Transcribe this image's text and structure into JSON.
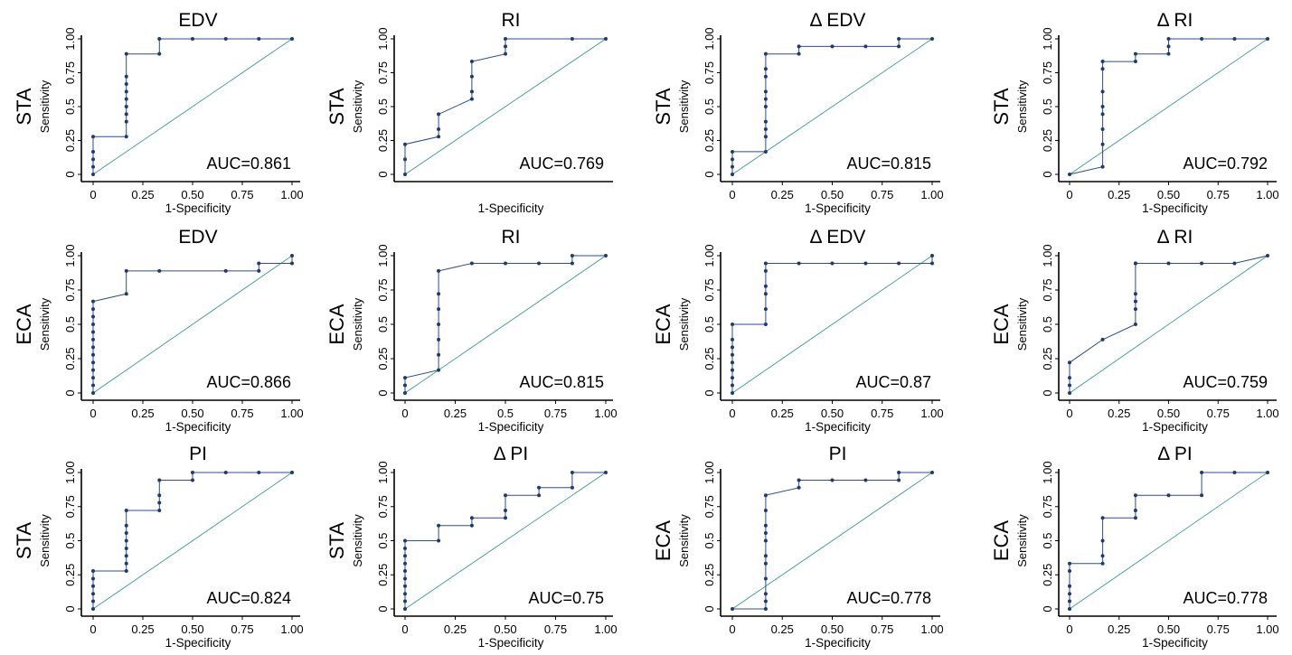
{
  "figure": {
    "colors": {
      "curve": "#2b4e8c",
      "point": "#1f3a6e",
      "diagonal": "#3a9a8e",
      "axis": "#000000"
    },
    "xlabel": "1-Specificity",
    "ylabel": "Sensitivity",
    "xticks_a": [
      "0",
      "0.25",
      "0.50",
      "0.75",
      "1.00"
    ],
    "xticks_b": [
      "0",
      "0.25",
      "0.5",
      "0.75",
      "1.00"
    ],
    "yticks": [
      "0",
      "0.25",
      "0.5",
      "0.75",
      "1.00"
    ]
  },
  "chart_data": [
    {
      "type": "line",
      "title": "EDV",
      "row_label": "STA",
      "xlabel": "1-Specificity",
      "ylabel": "Sensitivity",
      "auc": "AUC=0.861",
      "xticks": "xticks_a",
      "x": [
        0,
        0,
        0,
        0,
        0,
        0.167,
        0.167,
        0.167,
        0.167,
        0.167,
        0.167,
        0.167,
        0.167,
        0.167,
        0.333,
        0.333,
        0.5,
        0.667,
        0.833,
        1.0
      ],
      "y": [
        0,
        0.056,
        0.111,
        0.167,
        0.278,
        0.278,
        0.389,
        0.444,
        0.5,
        0.556,
        0.611,
        0.667,
        0.722,
        0.889,
        0.889,
        1.0,
        1.0,
        1.0,
        1.0,
        1.0
      ]
    },
    {
      "type": "line",
      "title": "RI",
      "row_label": "STA",
      "xlabel": "1-Specificity",
      "ylabel": "Sensitivity",
      "auc": "AUC=0.769",
      "xticks": "none",
      "x": [
        0,
        0,
        0,
        0.167,
        0.167,
        0.167,
        0.333,
        0.333,
        0.333,
        0.333,
        0.5,
        0.5,
        0.5,
        0.833,
        1.0
      ],
      "y": [
        0,
        0.111,
        0.222,
        0.278,
        0.333,
        0.444,
        0.556,
        0.611,
        0.722,
        0.833,
        0.889,
        0.944,
        1.0,
        1.0,
        1.0
      ]
    },
    {
      "type": "line",
      "title": "Δ EDV",
      "row_label": "STA",
      "xlabel": "1-Specificity",
      "ylabel": "Sensitivity",
      "auc": "AUC=0.815",
      "xticks": "xticks_a",
      "x": [
        0,
        0,
        0,
        0,
        0.167,
        0.167,
        0.167,
        0.167,
        0.167,
        0.167,
        0.167,
        0.167,
        0.167,
        0.167,
        0.333,
        0.333,
        0.5,
        0.667,
        0.833,
        0.833,
        1.0
      ],
      "y": [
        0,
        0.056,
        0.111,
        0.167,
        0.167,
        0.278,
        0.333,
        0.389,
        0.5,
        0.556,
        0.611,
        0.722,
        0.778,
        0.889,
        0.889,
        0.944,
        0.944,
        0.944,
        0.944,
        1.0,
        1.0
      ]
    },
    {
      "type": "line",
      "title": "Δ RI",
      "row_label": "STA",
      "xlabel": "1-Specificity",
      "ylabel": "Sensitivity",
      "auc": "AUC=0.792",
      "xticks": "xticks_a",
      "x": [
        0,
        0.167,
        0.167,
        0.167,
        0.167,
        0.167,
        0.167,
        0.167,
        0.167,
        0.333,
        0.333,
        0.5,
        0.5,
        0.5,
        0.667,
        0.833,
        1.0
      ],
      "y": [
        0,
        0.056,
        0.222,
        0.333,
        0.444,
        0.5,
        0.611,
        0.778,
        0.833,
        0.833,
        0.889,
        0.889,
        0.944,
        1.0,
        1.0,
        1.0,
        1.0
      ]
    },
    {
      "type": "line",
      "title": "EDV",
      "row_label": "ECA",
      "xlabel": "1-Specificity",
      "ylabel": "Sensitivity",
      "auc": "AUC=0.866",
      "xticks": "xticks_a",
      "x": [
        0,
        0,
        0,
        0,
        0,
        0,
        0,
        0,
        0,
        0,
        0,
        0,
        0,
        0.167,
        0.167,
        0.333,
        0.667,
        0.833,
        0.833,
        1.0,
        1.0
      ],
      "y": [
        0,
        0.056,
        0.111,
        0.167,
        0.222,
        0.278,
        0.333,
        0.389,
        0.444,
        0.5,
        0.556,
        0.611,
        0.667,
        0.722,
        0.889,
        0.889,
        0.889,
        0.889,
        0.944,
        0.944,
        1.0
      ]
    },
    {
      "type": "line",
      "title": "RI",
      "row_label": "ECA",
      "xlabel": "1-Specificity",
      "ylabel": "Sensitivity",
      "auc": "AUC=0.815",
      "xticks": "xticks_b",
      "x": [
        0,
        0,
        0,
        0.167,
        0.167,
        0.167,
        0.167,
        0.167,
        0.167,
        0.167,
        0.333,
        0.5,
        0.667,
        0.833,
        0.833,
        1.0
      ],
      "y": [
        0,
        0.056,
        0.111,
        0.167,
        0.278,
        0.389,
        0.5,
        0.611,
        0.722,
        0.889,
        0.944,
        0.944,
        0.944,
        0.944,
        1.0,
        1.0
      ]
    },
    {
      "type": "line",
      "title": "Δ EDV",
      "row_label": "ECA",
      "xlabel": "1-Specificity",
      "ylabel": "Sensitivity",
      "auc": "AUC=0.87",
      "xticks": "xticks_a",
      "x": [
        0,
        0,
        0,
        0,
        0,
        0,
        0,
        0,
        0,
        0.167,
        0.167,
        0.167,
        0.167,
        0.167,
        0.167,
        0.333,
        0.5,
        0.667,
        0.833,
        1.0,
        1.0
      ],
      "y": [
        0,
        0.056,
        0.111,
        0.167,
        0.222,
        0.278,
        0.333,
        0.389,
        0.5,
        0.5,
        0.611,
        0.722,
        0.778,
        0.889,
        0.944,
        0.944,
        0.944,
        0.944,
        0.944,
        0.944,
        1.0
      ]
    },
    {
      "type": "line",
      "title": "Δ RI",
      "row_label": "ECA",
      "xlabel": "1-Specificity",
      "ylabel": "Sensitivity",
      "auc": "AUC=0.759",
      "xticks": "xticks_a",
      "x": [
        0,
        0,
        0,
        0,
        0.167,
        0.333,
        0.333,
        0.333,
        0.333,
        0.333,
        0.333,
        0.5,
        0.667,
        0.833,
        1.0
      ],
      "y": [
        0,
        0.056,
        0.111,
        0.222,
        0.389,
        0.5,
        0.611,
        0.667,
        0.722,
        0.944,
        0.944,
        0.944,
        0.944,
        0.944,
        1.0
      ]
    },
    {
      "type": "line",
      "title": "PI",
      "row_label": "STA",
      "xlabel": "1-Specificity",
      "ylabel": "Sensitivity",
      "auc": "AUC=0.824",
      "xticks": "xticks_a",
      "x": [
        0,
        0,
        0,
        0,
        0,
        0,
        0.167,
        0.167,
        0.167,
        0.167,
        0.167,
        0.167,
        0.167,
        0.167,
        0.333,
        0.333,
        0.333,
        0.333,
        0.5,
        0.5,
        0.667,
        0.833,
        1.0
      ],
      "y": [
        0,
        0.056,
        0.111,
        0.167,
        0.222,
        0.278,
        0.278,
        0.333,
        0.389,
        0.444,
        0.5,
        0.556,
        0.611,
        0.722,
        0.722,
        0.778,
        0.833,
        0.944,
        0.944,
        1.0,
        1.0,
        1.0,
        1.0
      ]
    },
    {
      "type": "line",
      "title": "Δ PI",
      "row_label": "STA",
      "xlabel": "1-Specificity",
      "ylabel": "Sensitivity",
      "auc": "AUC=0.75",
      "xticks": "xticks_a",
      "x": [
        0,
        0,
        0,
        0,
        0,
        0,
        0,
        0,
        0,
        0,
        0.167,
        0.167,
        0.333,
        0.333,
        0.5,
        0.5,
        0.5,
        0.667,
        0.667,
        0.833,
        0.833,
        1.0
      ],
      "y": [
        0,
        0.056,
        0.111,
        0.167,
        0.222,
        0.278,
        0.333,
        0.389,
        0.444,
        0.5,
        0.5,
        0.611,
        0.611,
        0.667,
        0.667,
        0.722,
        0.833,
        0.833,
        0.889,
        0.889,
        1.0,
        1.0
      ]
    },
    {
      "type": "line",
      "title": "PI",
      "row_label": "ECA",
      "xlabel": "1-Specificity",
      "ylabel": "Sensitivity",
      "auc": "AUC=0.778",
      "xticks": "xticks_a",
      "x": [
        0,
        0.167,
        0.167,
        0.167,
        0.167,
        0.167,
        0.167,
        0.167,
        0.167,
        0.167,
        0.167,
        0.167,
        0.333,
        0.333,
        0.5,
        0.667,
        0.833,
        0.833,
        1.0
      ],
      "y": [
        0,
        0,
        0.056,
        0.111,
        0.222,
        0.333,
        0.389,
        0.5,
        0.556,
        0.611,
        0.722,
        0.833,
        0.889,
        0.944,
        0.944,
        0.944,
        0.944,
        1.0,
        1.0
      ]
    },
    {
      "type": "line",
      "title": "Δ PI",
      "row_label": "ECA",
      "xlabel": "1-Specificity",
      "ylabel": "Sensitivity",
      "auc": "AUC=0.778",
      "xticks": "xticks_a",
      "x": [
        0,
        0,
        0,
        0,
        0,
        0,
        0.167,
        0.167,
        0.167,
        0.167,
        0.333,
        0.333,
        0.333,
        0.5,
        0.667,
        0.667,
        0.833,
        1.0
      ],
      "y": [
        0,
        0.056,
        0.111,
        0.167,
        0.278,
        0.333,
        0.333,
        0.389,
        0.5,
        0.667,
        0.667,
        0.722,
        0.833,
        0.833,
        0.833,
        1.0,
        1.0,
        1.0
      ]
    }
  ]
}
